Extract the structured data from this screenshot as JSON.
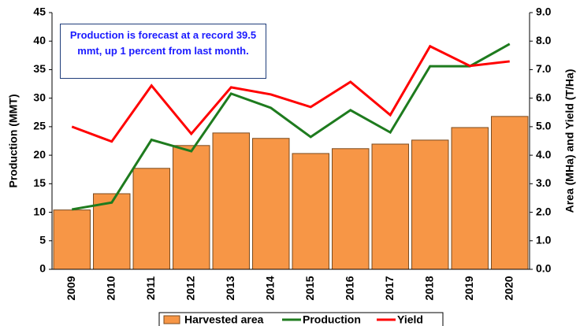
{
  "chart_data": {
    "type": "bar",
    "annotation": "Production is forecast at a record 39.5 mmt, up 1 percent from last month.",
    "ylabel": "Production (MMT)",
    "y2label": "Area (MHa) and Yield (T/Ha)",
    "categories": [
      "2009",
      "2010",
      "2011",
      "2012",
      "2013",
      "2014",
      "2015",
      "2016",
      "2017",
      "2018",
      "2019",
      "2020"
    ],
    "ylim": [
      0,
      45
    ],
    "yticks": [
      0,
      5,
      10,
      15,
      20,
      25,
      30,
      35,
      40,
      45
    ],
    "y2lim": [
      0,
      9
    ],
    "y2ticks": [
      {
        "value": 0,
        "label": "0.0"
      },
      {
        "value": 1,
        "label": "1.0"
      },
      {
        "value": 2,
        "label": "2.0"
      },
      {
        "value": 3,
        "label": "3.0"
      },
      {
        "value": 4,
        "label": "4.0"
      },
      {
        "value": 5,
        "label": "5.0"
      },
      {
        "value": 6,
        "label": "6.0"
      },
      {
        "value": 7,
        "label": "7.0"
      },
      {
        "value": 8,
        "label": "8.0"
      },
      {
        "value": 9,
        "label": "9.0"
      }
    ],
    "legend": "bottom",
    "series": [
      {
        "name": "Harvested area",
        "type": "bar",
        "axis": "y2",
        "color": "#f79646",
        "values": [
          2.08,
          2.65,
          3.54,
          4.34,
          4.78,
          4.59,
          4.06,
          4.23,
          4.39,
          4.53,
          4.97,
          5.36
        ]
      },
      {
        "name": "Production",
        "type": "line",
        "color": "#1e7b1e",
        "values": [
          10.5,
          11.7,
          22.7,
          20.7,
          30.8,
          28.3,
          23.2,
          27.9,
          24.0,
          35.6,
          35.6,
          39.5
        ]
      },
      {
        "name": "Yield",
        "type": "line",
        "axis": "y2",
        "color": "#ff0000",
        "values": [
          5.0,
          4.48,
          6.44,
          4.75,
          6.38,
          6.13,
          5.69,
          6.57,
          5.41,
          7.82,
          7.13,
          7.29
        ]
      }
    ]
  }
}
